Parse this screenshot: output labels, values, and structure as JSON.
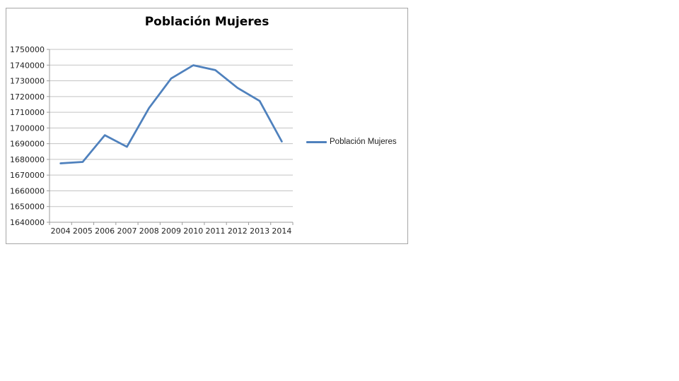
{
  "chart": {
    "background": "#FFFFFF",
    "border_color": "#A6A6A6",
    "line_color": "#4F81BD",
    "gridline_color": "#C3C3C3",
    "axis_color": "#9B9B9B",
    "text_color": "#1F1F1F",
    "title_color": "#000000"
  },
  "chart_data": {
    "type": "line",
    "title": "Población Mujeres",
    "categories": [
      "2004",
      "2005",
      "2006",
      "2007",
      "2008",
      "2009",
      "2010",
      "2011",
      "2012",
      "2013",
      "2014"
    ],
    "series": [
      {
        "name": "Población Mujeres",
        "values": [
          1677500,
          1678400,
          1695400,
          1688000,
          1712700,
          1731500,
          1739900,
          1736800,
          1725500,
          1717200,
          1691400
        ]
      }
    ],
    "xlabel": "",
    "ylabel": "",
    "ylim": [
      1640000,
      1750000
    ],
    "ytick_step": 10000,
    "yticks": [
      1640000,
      1650000,
      1660000,
      1670000,
      1680000,
      1690000,
      1700000,
      1710000,
      1720000,
      1730000,
      1740000,
      1750000
    ],
    "grid": true,
    "legend_position": "right"
  }
}
